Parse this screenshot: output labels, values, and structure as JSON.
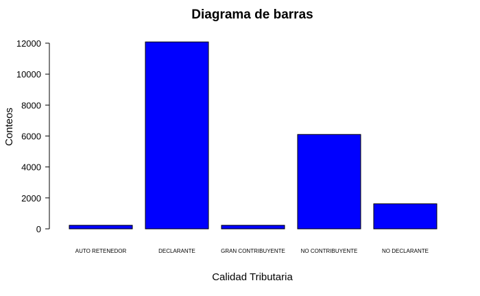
{
  "chart_data": {
    "type": "bar",
    "title": "Diagrama de barras",
    "xlabel": "Calidad Tributaria",
    "ylabel": "Conteos",
    "categories": [
      "AUTO RETENEDOR",
      "DECLARANTE",
      "GRAN CONTRIBUYENTE",
      "NO CONTRIBUYENTE",
      "NO DECLARANTE"
    ],
    "values": [
      230,
      12080,
      230,
      6100,
      1620
    ],
    "yticks": [
      0,
      2000,
      4000,
      6000,
      8000,
      10000,
      12000
    ],
    "ylim": [
      0,
      12000
    ],
    "grid": false,
    "bar_color": "#0000ff",
    "edge_color": "#000000"
  }
}
